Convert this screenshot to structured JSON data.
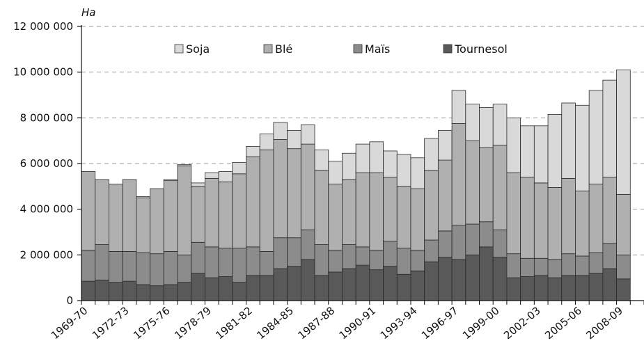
{
  "chart_data": {
    "type": "bar",
    "stacked": true,
    "title": "",
    "xlabel": "",
    "ylabel": "Ha",
    "ylim": [
      0,
      12000000
    ],
    "y_ticks": [
      0,
      2000000,
      4000000,
      6000000,
      8000000,
      10000000,
      12000000
    ],
    "y_tick_labels": [
      "0",
      "2 000 000",
      "4 000 000",
      "6 000 000",
      "8 000 000",
      "10 000 000",
      "12 000 000"
    ],
    "grid": "horizontal dashed",
    "legend_position": "top",
    "x_tick_labels": [
      "1969-70",
      "1972-73",
      "1975-76",
      "1978-79",
      "1981-82",
      "1984-85",
      "1987-88",
      "1990-91",
      "1993-94",
      "1996-97",
      "1999-00",
      "2002-03",
      "2005-06",
      "2008-09"
    ],
    "categories": [
      "1969-70",
      "1970-71",
      "1971-72",
      "1972-73",
      "1973-74",
      "1974-75",
      "1975-76",
      "1976-77",
      "1977-78",
      "1978-79",
      "1979-80",
      "1980-81",
      "1981-82",
      "1982-83",
      "1983-84",
      "1984-85",
      "1985-86",
      "1986-87",
      "1987-88",
      "1988-89",
      "1989-90",
      "1990-91",
      "1991-92",
      "1992-93",
      "1993-94",
      "1994-95",
      "1995-96",
      "1996-97",
      "1997-98",
      "1998-99",
      "1999-00",
      "2000-01",
      "2001-02",
      "2002-03",
      "2003-04",
      "2004-05",
      "2005-06",
      "2006-07",
      "2007-08",
      "2008-09",
      "2009-10"
    ],
    "series": [
      {
        "name": "Tournesol",
        "color": "#595959",
        "values": [
          850000,
          900000,
          800000,
          850000,
          700000,
          650000,
          700000,
          800000,
          1200000,
          1000000,
          1050000,
          800000,
          1100000,
          1100000,
          1400000,
          1500000,
          1800000,
          1100000,
          1250000,
          1400000,
          1550000,
          1350000,
          1500000,
          1150000,
          1300000,
          1700000,
          1900000,
          1800000,
          2000000,
          2350000,
          1900000,
          1000000,
          1050000,
          1100000,
          1000000,
          1100000,
          1100000,
          1200000,
          1400000,
          950000,
          0
        ]
      },
      {
        "name": "Maïs",
        "color": "#8c8c8c",
        "values": [
          1350000,
          1550000,
          1350000,
          1300000,
          1400000,
          1400000,
          1450000,
          1200000,
          1350000,
          1350000,
          1250000,
          1500000,
          1250000,
          1050000,
          1350000,
          1250000,
          1300000,
          1350000,
          950000,
          1050000,
          800000,
          850000,
          1100000,
          1150000,
          900000,
          950000,
          1150000,
          1500000,
          1350000,
          1100000,
          1200000,
          1050000,
          800000,
          750000,
          800000,
          950000,
          850000,
          900000,
          1100000,
          1050000,
          0
        ]
      },
      {
        "name": "Blé",
        "color": "#b0b0b0",
        "values": [
          3450000,
          2850000,
          2950000,
          3150000,
          2400000,
          2850000,
          3100000,
          3900000,
          2450000,
          3000000,
          2900000,
          3250000,
          3950000,
          4450000,
          4300000,
          3900000,
          3750000,
          3250000,
          2900000,
          2850000,
          3250000,
          3400000,
          2800000,
          2700000,
          2700000,
          3050000,
          3100000,
          4450000,
          3650000,
          3250000,
          3700000,
          3550000,
          3550000,
          3300000,
          3150000,
          3300000,
          2850000,
          3000000,
          2900000,
          2650000,
          0
        ]
      },
      {
        "name": "Soja",
        "color": "#d9d9d9",
        "values": [
          0,
          0,
          0,
          0,
          50000,
          0,
          50000,
          50000,
          150000,
          250000,
          450000,
          500000,
          450000,
          700000,
          750000,
          800000,
          850000,
          900000,
          1000000,
          1150000,
          1250000,
          1350000,
          1150000,
          1400000,
          1350000,
          1400000,
          1300000,
          1450000,
          1600000,
          1750000,
          1800000,
          2400000,
          2250000,
          2500000,
          3200000,
          3300000,
          3750000,
          4100000,
          4250000,
          5450000,
          0
        ]
      }
    ]
  }
}
